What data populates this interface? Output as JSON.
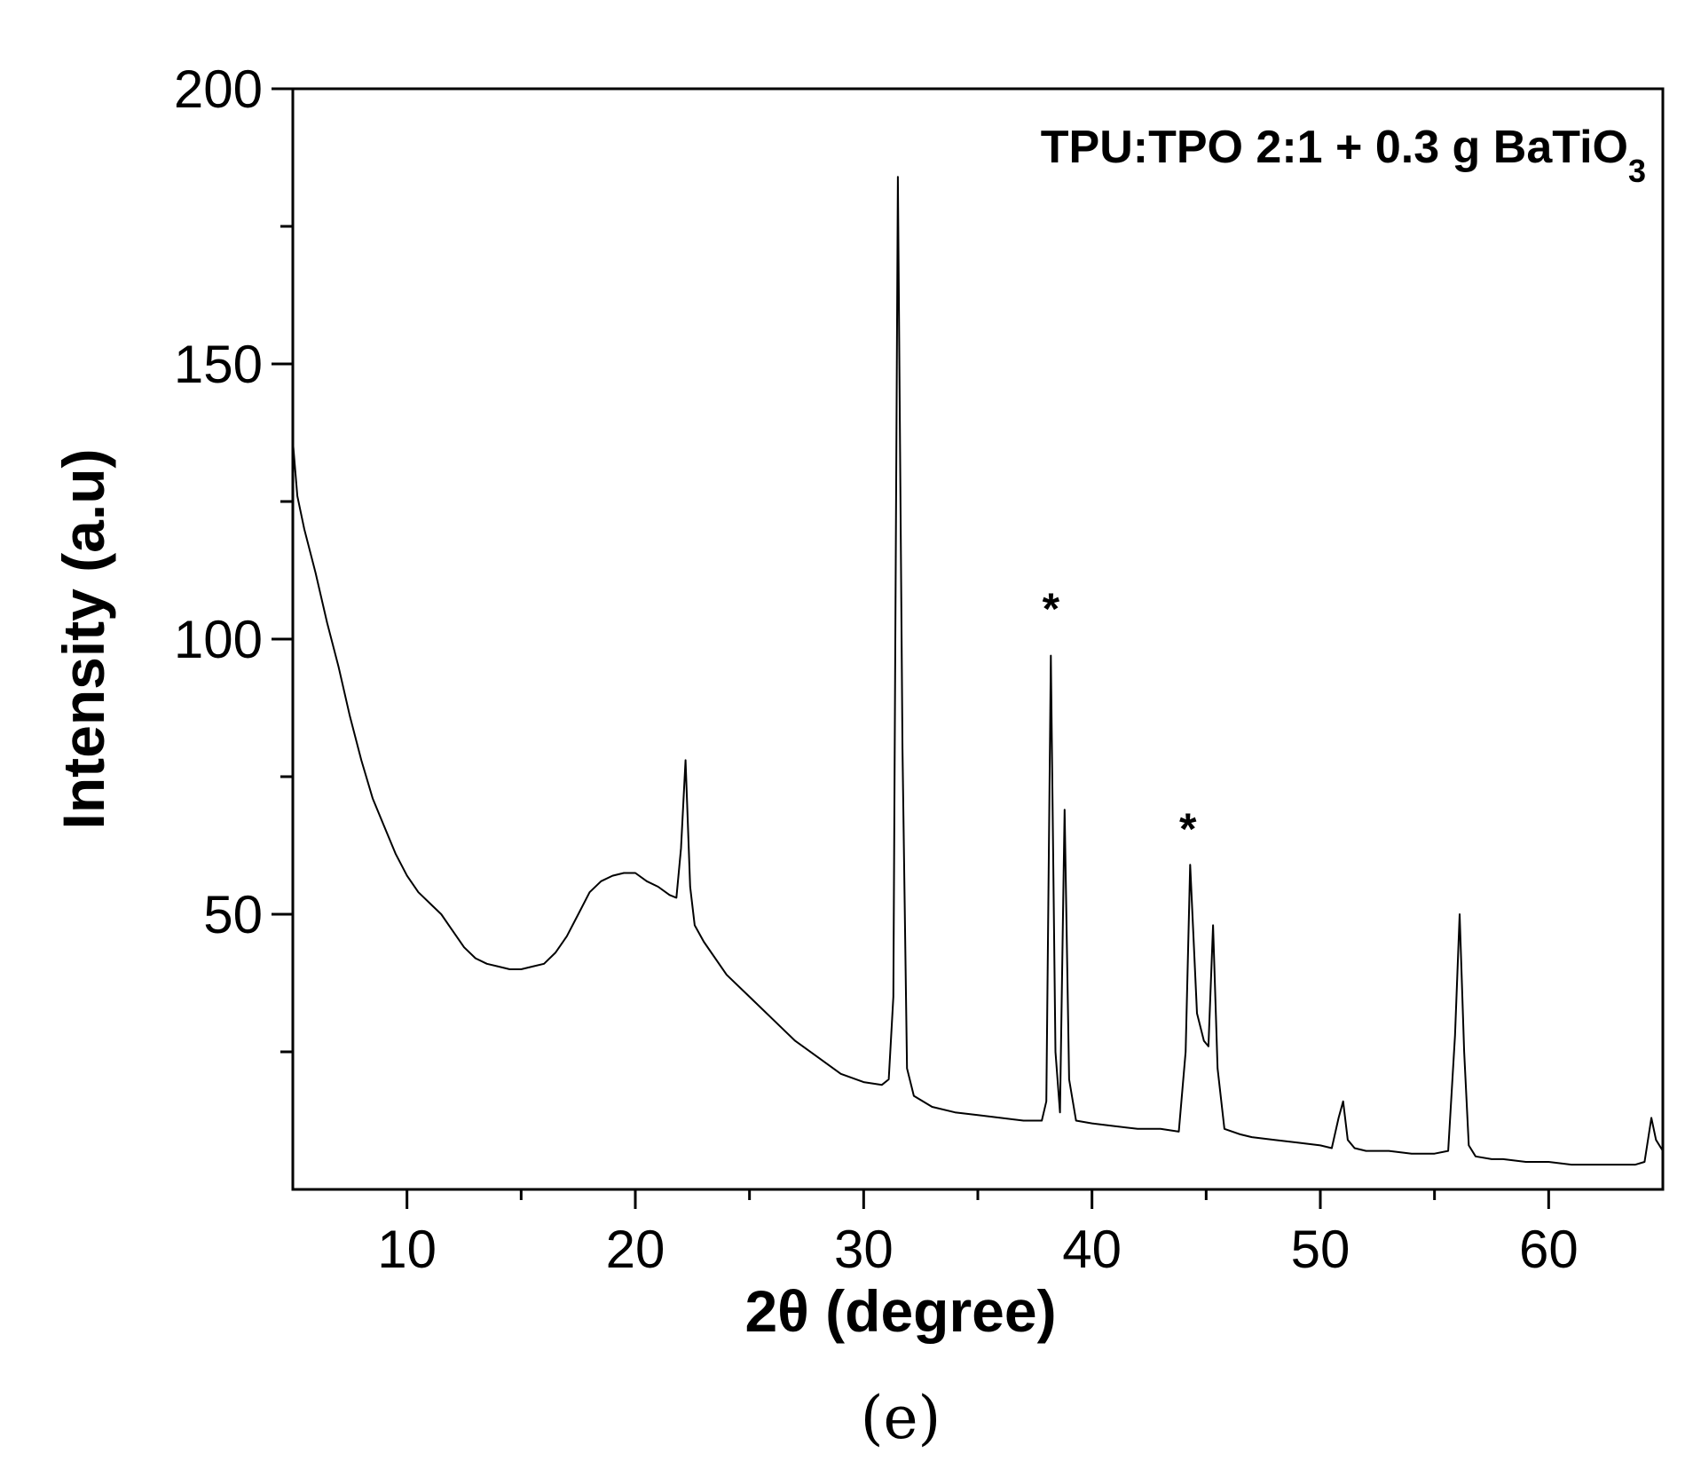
{
  "chart_data": {
    "type": "line",
    "title": "",
    "xlabel": "2θ (degree)",
    "ylabel": "Intensity (a.u)",
    "xlim": [
      5,
      65
    ],
    "ylim": [
      0,
      200
    ],
    "x_ticks": [
      10,
      20,
      30,
      40,
      50,
      60
    ],
    "y_ticks": [
      50,
      100,
      150,
      200
    ],
    "x_tick_labels": [
      "10",
      "20",
      "30",
      "40",
      "50",
      "60"
    ],
    "y_tick_labels": [
      "50",
      "100",
      "150",
      "200"
    ],
    "grid": false,
    "annotation": {
      "text": "TPU:TPO 2:1 + 0.3 g BaTiO",
      "subscript": "3"
    },
    "markers": [
      {
        "x": 38.2,
        "y": 106,
        "text": "*"
      },
      {
        "x": 44.2,
        "y": 66,
        "text": "*"
      }
    ],
    "panel_label": "(e)",
    "line_color": "#000000",
    "series": [
      {
        "x": [
          5.0,
          5.2,
          5.5,
          6.0,
          6.5,
          7.0,
          7.5,
          8.0,
          8.5,
          9.0,
          9.5,
          10.0,
          10.5,
          11.0,
          11.5,
          12.0,
          12.5,
          13.0,
          13.5,
          14.0,
          14.5,
          15.0,
          15.5,
          16.0,
          16.5,
          17.0,
          17.5,
          18.0,
          18.5,
          19.0,
          19.5,
          20.0,
          20.5,
          21.0,
          21.5,
          21.8,
          22.0,
          22.2,
          22.4,
          22.6,
          23.0,
          24.0,
          25.0,
          26.0,
          27.0,
          28.0,
          29.0,
          30.0,
          30.8,
          31.1,
          31.3,
          31.5,
          31.7,
          31.9,
          32.2,
          33.0,
          34.0,
          35.0,
          36.0,
          37.0,
          37.8,
          38.0,
          38.2,
          38.4,
          38.6,
          38.8,
          39.0,
          39.3,
          40.0,
          41.0,
          42.0,
          43.0,
          43.8,
          44.1,
          44.3,
          44.6,
          44.9,
          45.1,
          45.3,
          45.5,
          45.8,
          46.5,
          47.0,
          48.0,
          49.0,
          50.0,
          50.5,
          50.8,
          51.0,
          51.2,
          51.5,
          52.0,
          53.0,
          54.0,
          55.0,
          55.6,
          55.9,
          56.1,
          56.3,
          56.5,
          56.8,
          57.5,
          58.0,
          59.0,
          60.0,
          61.0,
          62.0,
          63.0,
          63.8,
          64.2,
          64.5,
          64.7,
          65.0
        ],
        "y": [
          136,
          126,
          120,
          112,
          103,
          95,
          86,
          78,
          71,
          66,
          61,
          57,
          54,
          52,
          50,
          47,
          44,
          42,
          41,
          40.5,
          40,
          40,
          40.5,
          41,
          43,
          46,
          50,
          54,
          56,
          57,
          57.5,
          57.5,
          56,
          55,
          53.5,
          53,
          62,
          78,
          55,
          48,
          45,
          39,
          35,
          31,
          27,
          24,
          21,
          19.5,
          19,
          20,
          35,
          184,
          80,
          22,
          17,
          15,
          14,
          13.5,
          13,
          12.5,
          12.5,
          16,
          97,
          25,
          14,
          69,
          20,
          12.5,
          12,
          11.5,
          11,
          11,
          10.5,
          25,
          59,
          32,
          27,
          26,
          48,
          22,
          11,
          10,
          9.5,
          9,
          8.5,
          8,
          7.5,
          13,
          16,
          9,
          7.5,
          7,
          7,
          6.5,
          6.5,
          7,
          28,
          50,
          25,
          8,
          6,
          5.5,
          5.5,
          5,
          5,
          4.5,
          4.5,
          4.5,
          4.5,
          5,
          13,
          9,
          7
        ]
      }
    ]
  }
}
